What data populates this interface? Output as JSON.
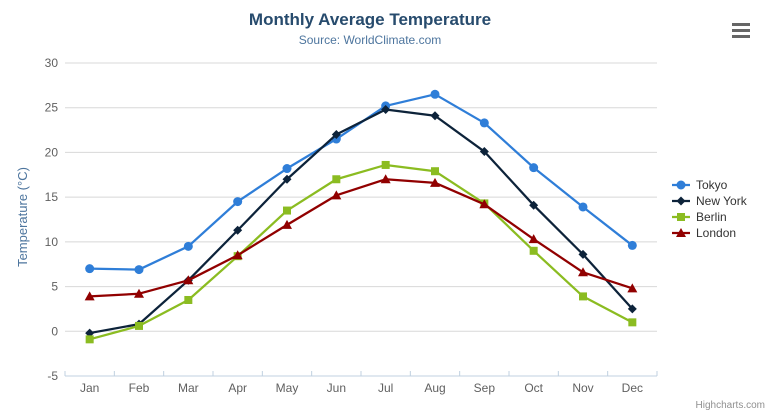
{
  "header": {
    "title": "Monthly Average Temperature",
    "subtitle": "Source: WorldClimate.com"
  },
  "export_menu": {
    "icon": "hamburger-menu-icon"
  },
  "credits": {
    "label": "Highcharts.com"
  },
  "colors": {
    "title": "#274b6d",
    "subtitle": "#4d759e",
    "axis_label": "#606060",
    "axis_title": "#4d759e",
    "grid_line": "#d8d8d8",
    "x_axis_line": "#c0d0e0",
    "legend_text": "#333333",
    "credits_text": "#909090",
    "export_icon": "#666666"
  },
  "chart_data": {
    "type": "line",
    "title": "Monthly Average Temperature",
    "subtitle": "Source: WorldClimate.com",
    "categories": [
      "Jan",
      "Feb",
      "Mar",
      "Apr",
      "May",
      "Jun",
      "Jul",
      "Aug",
      "Sep",
      "Oct",
      "Nov",
      "Dec"
    ],
    "xlabel": "",
    "ylabel": "Temperature (°C)",
    "ylim": [
      -5,
      30
    ],
    "ytick_interval": 5,
    "grid": true,
    "legend_position": "right",
    "series": [
      {
        "name": "Tokyo",
        "color": "#2f7ed8",
        "marker": "circle",
        "values": [
          7.0,
          6.9,
          9.5,
          14.5,
          18.2,
          21.5,
          25.2,
          26.5,
          23.3,
          18.3,
          13.9,
          9.6
        ]
      },
      {
        "name": "New York",
        "color": "#0d233a",
        "marker": "diamond",
        "values": [
          -0.2,
          0.8,
          5.7,
          11.3,
          17.0,
          22.0,
          24.8,
          24.1,
          20.1,
          14.1,
          8.6,
          2.5
        ]
      },
      {
        "name": "Berlin",
        "color": "#8bbc21",
        "marker": "square",
        "values": [
          -0.9,
          0.6,
          3.5,
          8.4,
          13.5,
          17.0,
          18.6,
          17.9,
          14.3,
          9.0,
          3.9,
          1.0
        ]
      },
      {
        "name": "London",
        "color": "#910000",
        "marker": "triangle",
        "values": [
          3.9,
          4.2,
          5.7,
          8.5,
          11.9,
          15.2,
          17.0,
          16.6,
          14.2,
          10.3,
          6.6,
          4.8
        ]
      }
    ]
  }
}
